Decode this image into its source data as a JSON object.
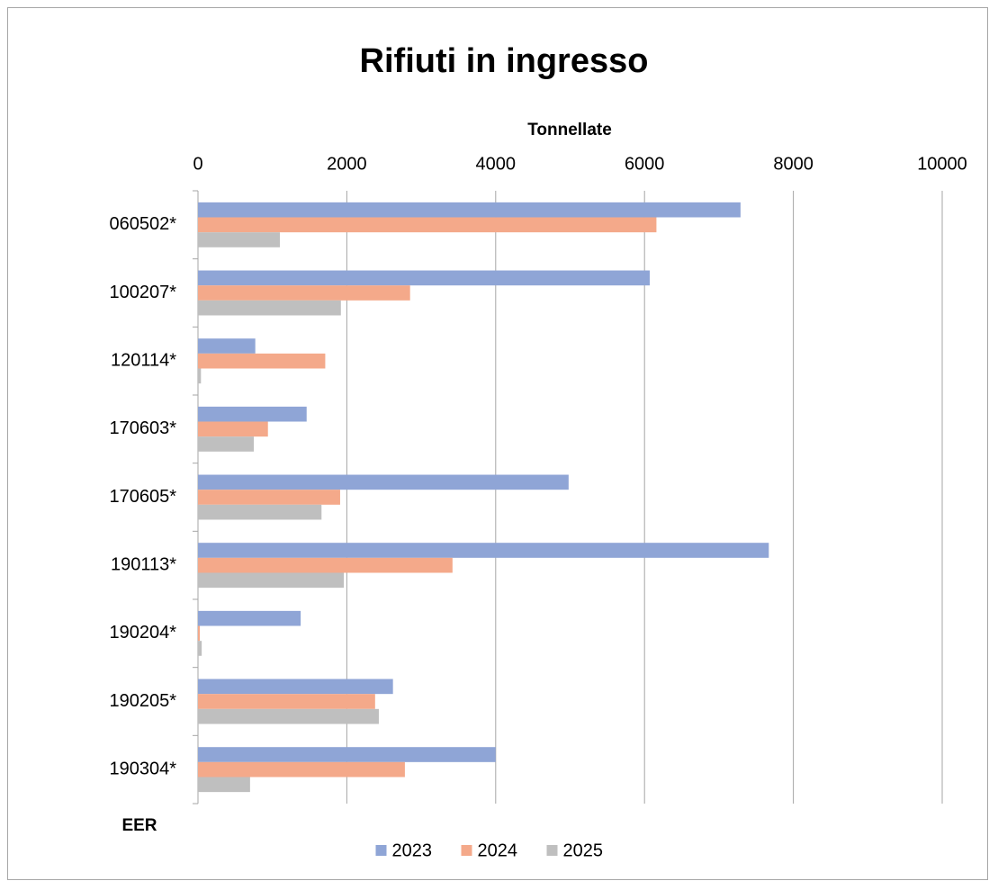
{
  "chart_data": {
    "type": "bar",
    "orientation": "horizontal",
    "title": "Rifiuti in ingresso",
    "x_label": "Tonnellate",
    "y_label": "EER",
    "categories": [
      "060502*",
      "100207*",
      "120114*",
      "170603*",
      "170605*",
      "190113*",
      "190204*",
      "190205*",
      "190304*"
    ],
    "series": [
      {
        "name": "2023",
        "color": "#8fa5d6",
        "values": [
          7290,
          6070,
          770,
          1460,
          4980,
          7670,
          1380,
          2620,
          4000
        ]
      },
      {
        "name": "2024",
        "color": "#f4a98a",
        "values": [
          6160,
          2850,
          1710,
          940,
          1910,
          3420,
          25,
          2380,
          2780
        ]
      },
      {
        "name": "2025",
        "color": "#bfbfbf",
        "values": [
          1100,
          1920,
          40,
          750,
          1660,
          1960,
          50,
          2430,
          700
        ]
      }
    ],
    "xlim": [
      0,
      10000
    ],
    "xticks": [
      0,
      2000,
      4000,
      6000,
      8000,
      10000
    ],
    "grid": true,
    "legend": "bottom"
  }
}
